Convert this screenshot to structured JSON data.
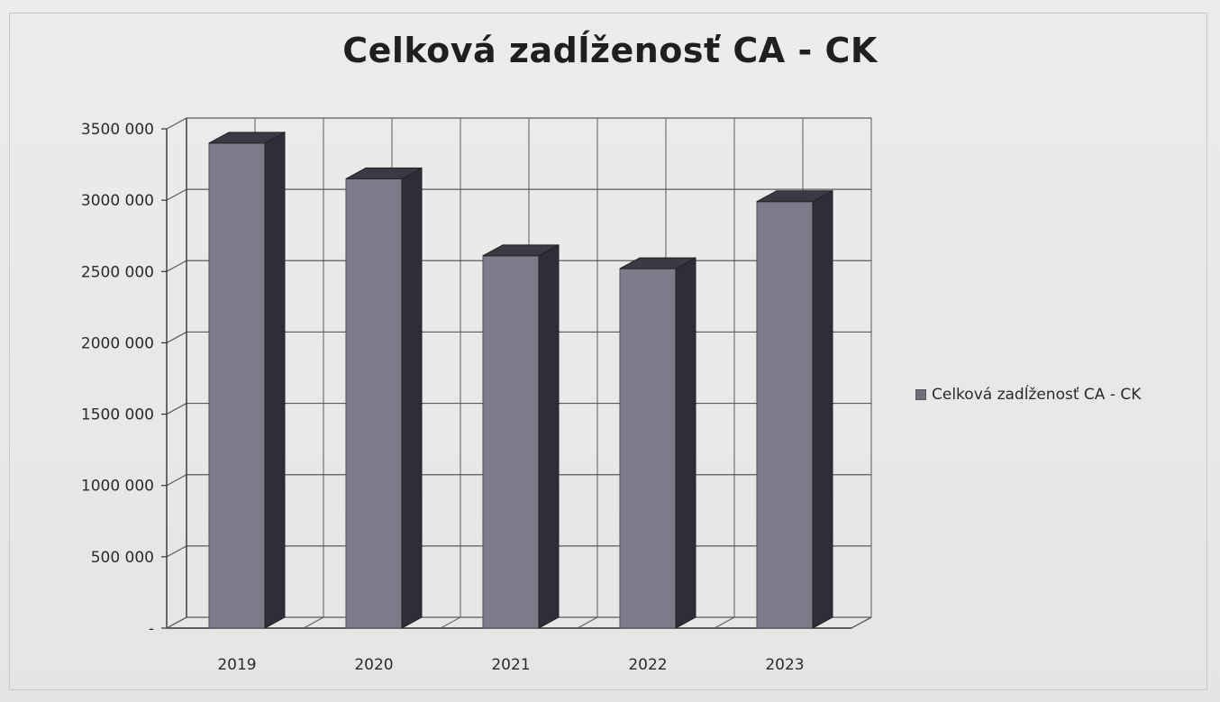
{
  "chart_data": {
    "type": "bar",
    "title": "Celková zadĺženosť CA - CK",
    "xlabel": "",
    "ylabel": "",
    "categories": [
      "2019",
      "2020",
      "2021",
      "2022",
      "2023"
    ],
    "series": [
      {
        "name": "Celková zadĺženosť CA - CK",
        "values": [
          3400000,
          3150000,
          2610000,
          2520000,
          2990000
        ]
      }
    ],
    "ylim": [
      0,
      3500000
    ],
    "yticks": [
      0,
      500000,
      1000000,
      1500000,
      2000000,
      2500000,
      3000000,
      3500000
    ],
    "ytick_labels": [
      "-",
      "500 000",
      "1000 000",
      "1500 000",
      "2000 000",
      "2500 000",
      "3000 000",
      "3500 000"
    ],
    "grid": true,
    "legend_position": "right",
    "style": "3d-column",
    "colors": {
      "bar_front": "#7b7b8a",
      "bar_side": "#2e2e38",
      "bar_top": "#3a3a44",
      "grid": "#5a5a5a"
    }
  }
}
